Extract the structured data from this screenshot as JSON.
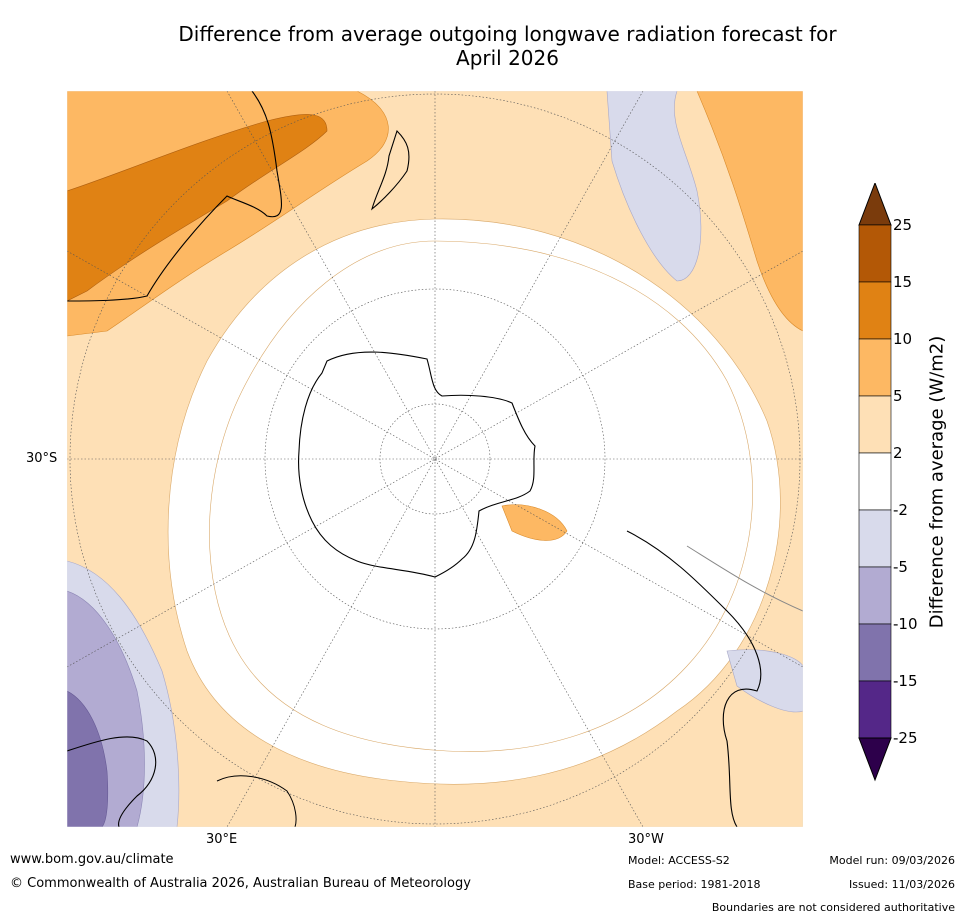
{
  "title": {
    "line1": "Difference from average outgoing longwave radiation forecast for",
    "line2": "April 2026"
  },
  "map": {
    "projection": "south-polar-stereographic",
    "lat_labels": [
      "30°S"
    ],
    "lon_labels": [
      "30°E",
      "30°W"
    ]
  },
  "legend": {
    "title": "Difference from average (W/m2)",
    "ticks": [
      "25",
      "15",
      "10",
      "5",
      "2",
      "-2",
      "-5",
      "-10",
      "-15",
      "-25"
    ],
    "colors": [
      "#7a3b0c",
      "#b35806",
      "#e08214",
      "#fdb863",
      "#fee0b6",
      "#ffffff",
      "#d8daeb",
      "#b2abd2",
      "#8073ac",
      "#542788",
      "#2d004b"
    ]
  },
  "footer": {
    "url": "www.bom.gov.au/climate",
    "copyright": "© Commonwealth of Australia 2026, Australian Bureau of Meteorology",
    "model": "Model: ACCESS-S2",
    "base_period": "Base period: 1981-2018",
    "model_run": "Model run: 09/03/2026",
    "issued": "Issued: 11/03/2026",
    "disclaimer": "Boundaries are not considered authoritative"
  }
}
